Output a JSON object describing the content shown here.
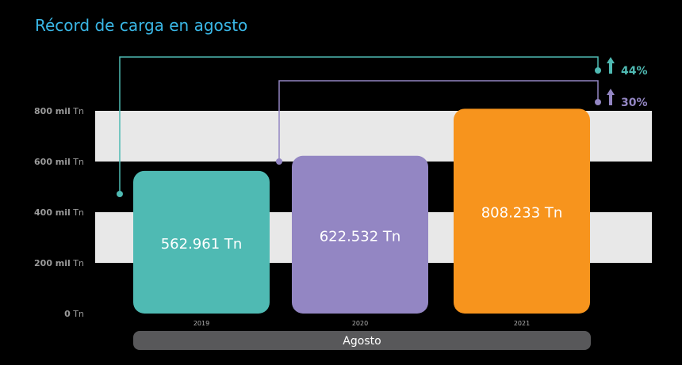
{
  "title": "Récord de carga en agosto",
  "chart_data": {
    "type": "bar",
    "title": "Récord de carga en agosto",
    "group_label": "Agosto",
    "categories": [
      "2019",
      "2020",
      "2021"
    ],
    "values": [
      562961,
      622532,
      808233
    ],
    "value_labels": [
      "562.961 Tn",
      "622.532 Tn",
      "808.233 Tn"
    ],
    "colors": [
      "#4fbab3",
      "#9386c3",
      "#f7941d"
    ],
    "y_ticks": [
      {
        "value": 0,
        "num": "0",
        "unit": "Tn"
      },
      {
        "value": 200000,
        "num": "200 mil",
        "unit": "Tn"
      },
      {
        "value": 400000,
        "num": "400 mil",
        "unit": "Tn"
      },
      {
        "value": 600000,
        "num": "600 mil",
        "unit": "Tn"
      },
      {
        "value": 800000,
        "num": "800 mil",
        "unit": "Tn"
      }
    ],
    "ylim": [
      0,
      800000
    ],
    "bands": [
      [
        200000,
        400000
      ],
      [
        600000,
        800000
      ]
    ],
    "band_color": "#e8e8e8",
    "comparisons": [
      {
        "from": "2019",
        "to": "2021",
        "label": "44%",
        "color": "#4fbab3"
      },
      {
        "from": "2020",
        "to": "2021",
        "label": "30%",
        "color": "#9386c3"
      }
    ]
  }
}
